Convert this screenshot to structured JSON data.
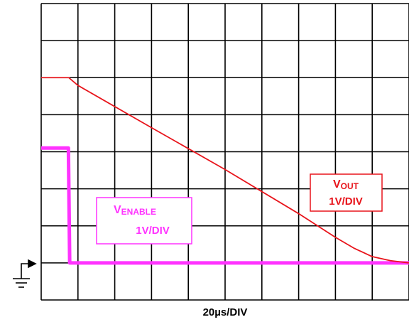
{
  "chart_data": {
    "type": "line",
    "xlabel": "20µs/DIV",
    "xlim": [
      0,
      200
    ],
    "xticks": [
      0,
      20,
      40,
      60,
      80,
      100,
      120,
      140,
      160,
      180,
      200
    ],
    "ylim": [
      -1,
      7
    ],
    "yticks": [
      -1,
      0,
      1,
      2,
      3,
      4,
      5,
      6,
      7
    ],
    "grid": true,
    "series": [
      {
        "name": "V",
        "subscript": "OUT",
        "scale": "1V/DIV",
        "color": "#e8141b",
        "x": [
          0,
          15,
          20,
          60,
          100,
          140,
          160,
          170,
          180,
          190,
          200
        ],
        "values": [
          5,
          5,
          4.79,
          3.65,
          2.52,
          1.33,
          0.69,
          0.4,
          0.17,
          0.06,
          0
        ]
      },
      {
        "name": "V",
        "subscript": "ENABLE",
        "scale": "1V/DIV",
        "color": "#ff33ff",
        "x": [
          0,
          14.8,
          15.5,
          200
        ],
        "values": [
          3.1,
          3.1,
          0,
          0
        ]
      }
    ]
  }
}
